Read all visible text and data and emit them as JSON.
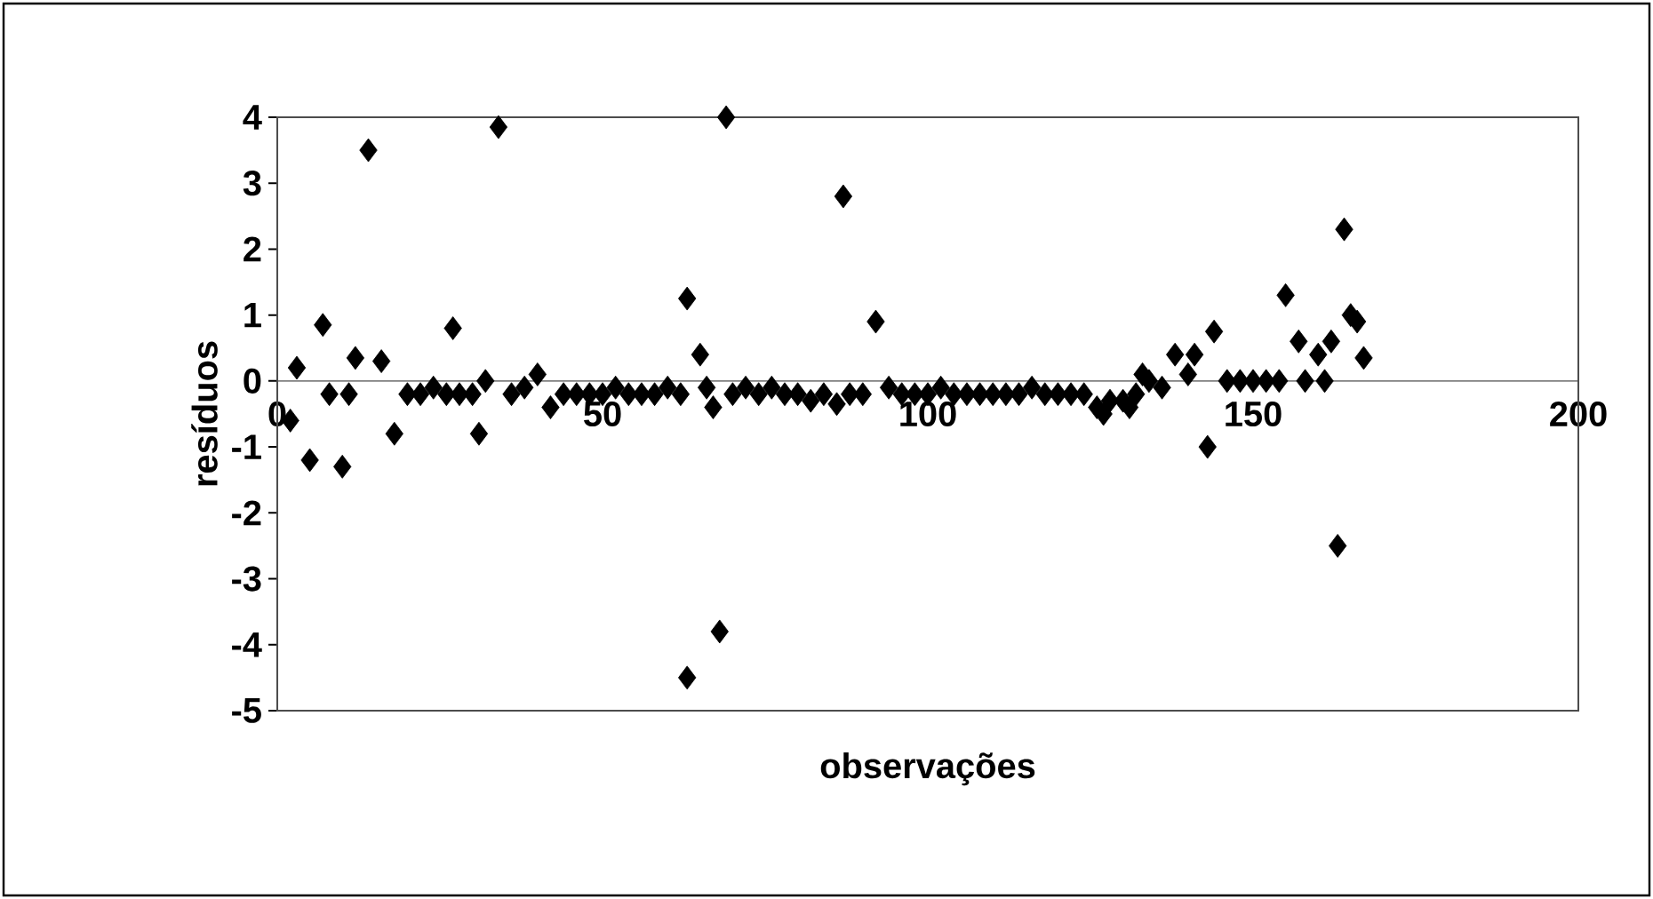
{
  "chart_data": {
    "type": "scatter",
    "xlabel": "observações",
    "ylabel": "resíduos",
    "xlim": [
      0,
      200
    ],
    "ylim": [
      -5,
      4
    ],
    "xticks": [
      0,
      50,
      100,
      150,
      200
    ],
    "yticks": [
      -5,
      -4,
      -3,
      -2,
      -1,
      0,
      1,
      2,
      3,
      4
    ],
    "marker": "diamond",
    "color": "#000000",
    "x": [
      2,
      3,
      5,
      7,
      8,
      10,
      11,
      12,
      14,
      16,
      18,
      27,
      31,
      34,
      63,
      63,
      65,
      67,
      69,
      68,
      87,
      92,
      86,
      144,
      143,
      155,
      157,
      163,
      164,
      160,
      162,
      165,
      166,
      167,
      138,
      141,
      127,
      131,
      133,
      20,
      22,
      24,
      26,
      28,
      30,
      32,
      36,
      38,
      40,
      42,
      44,
      46,
      48,
      50,
      52,
      54,
      56,
      58,
      60,
      62,
      66,
      70,
      72,
      74,
      76,
      78,
      80,
      82,
      84,
      88,
      90,
      94,
      96,
      98,
      100,
      102,
      104,
      106,
      108,
      110,
      112,
      114,
      116,
      118,
      120,
      122,
      124,
      126,
      128,
      130,
      132,
      134,
      136,
      140,
      146,
      148,
      150,
      152,
      154,
      158,
      161
    ],
    "values": [
      -0.6,
      0.2,
      -1.2,
      0.85,
      -0.2,
      -1.3,
      -0.2,
      0.35,
      3.5,
      0.3,
      -0.8,
      0.8,
      -0.8,
      3.85,
      -4.5,
      1.25,
      0.4,
      -0.4,
      4.0,
      -3.8,
      2.8,
      0.9,
      -0.35,
      0.75,
      -1.0,
      1.3,
      0.6,
      -2.5,
      2.3,
      0.4,
      0.6,
      1.0,
      0.9,
      0.35,
      0.4,
      0.4,
      -0.5,
      -0.4,
      0.1,
      -0.2,
      -0.2,
      -0.1,
      -0.2,
      -0.2,
      -0.2,
      0.0,
      -0.2,
      -0.1,
      0.1,
      -0.4,
      -0.2,
      -0.2,
      -0.2,
      -0.2,
      -0.1,
      -0.2,
      -0.2,
      -0.2,
      -0.1,
      -0.2,
      -0.1,
      -0.2,
      -0.1,
      -0.2,
      -0.1,
      -0.2,
      -0.2,
      -0.3,
      -0.2,
      -0.2,
      -0.2,
      -0.1,
      -0.2,
      -0.2,
      -0.2,
      -0.1,
      -0.2,
      -0.2,
      -0.2,
      -0.2,
      -0.2,
      -0.2,
      -0.1,
      -0.2,
      -0.2,
      -0.2,
      -0.2,
      -0.4,
      -0.3,
      -0.3,
      -0.2,
      0.0,
      -0.1,
      0.1,
      0.0,
      0.0,
      0.0,
      0.0,
      0.0,
      0.0,
      0.0
    ]
  }
}
